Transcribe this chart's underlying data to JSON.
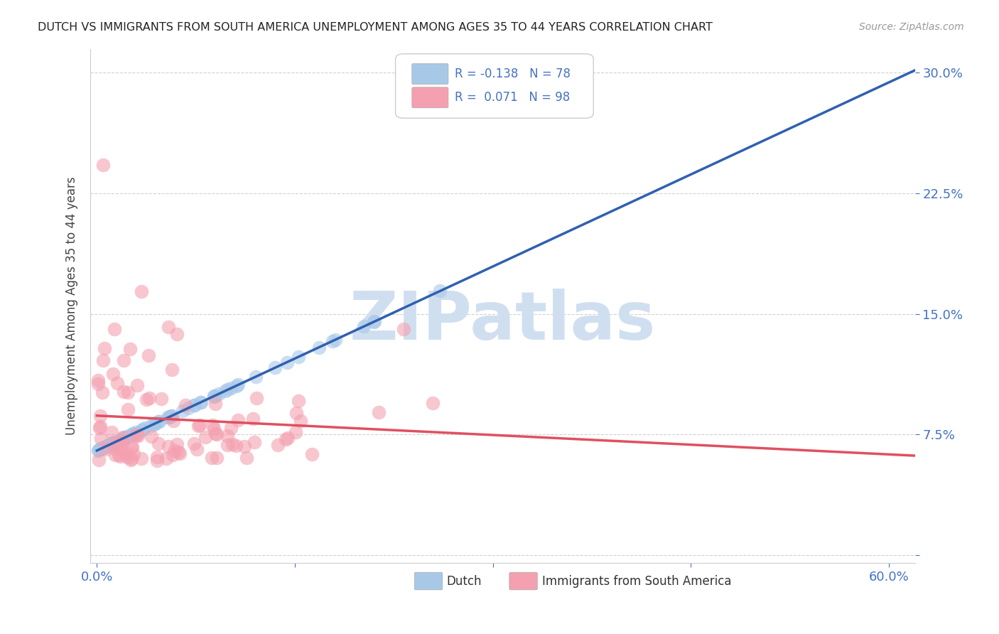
{
  "title": "DUTCH VS IMMIGRANTS FROM SOUTH AMERICA UNEMPLOYMENT AMONG AGES 35 TO 44 YEARS CORRELATION CHART",
  "source": "Source: ZipAtlas.com",
  "ylabel": "Unemployment Among Ages 35 to 44 years",
  "xlim": [
    0.0,
    0.62
  ],
  "ylim": [
    -0.005,
    0.315
  ],
  "yticks": [
    0.0,
    0.075,
    0.15,
    0.225,
    0.3
  ],
  "ytick_labels": [
    "",
    "7.5%",
    "15.0%",
    "22.5%",
    "30.0%"
  ],
  "xticks": [
    0.0,
    0.15,
    0.3,
    0.45,
    0.6
  ],
  "xtick_labels": [
    "0.0%",
    "",
    "",
    "",
    "60.0%"
  ],
  "dutch_R": -0.138,
  "dutch_N": 78,
  "immigrants_R": 0.071,
  "immigrants_N": 98,
  "dutch_color": "#a8c8e8",
  "immigrants_color": "#f4a0b0",
  "dutch_line_color": "#3060b0",
  "immigrants_line_color": "#e05060",
  "background_color": "#ffffff",
  "watermark": "ZIPatlas",
  "watermark_color": "#d0dff0",
  "grid_color": "#cccccc",
  "title_color": "#222222",
  "tick_color": "#4472c4",
  "source_color": "#999999"
}
